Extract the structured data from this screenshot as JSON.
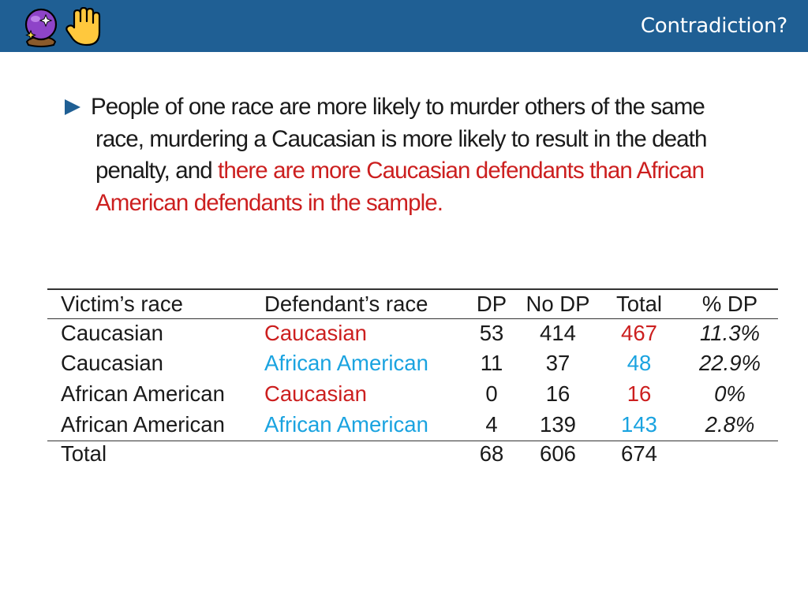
{
  "header": {
    "title": "Contradiction?",
    "icons": [
      "crystal-ball-icon",
      "raised-hand-icon"
    ]
  },
  "bullet": {
    "text_plain": "People of one race are more likely to murder others of the same race, murdering a Caucasian is more likely to result in the death penalty, and ",
    "text_highlight": "there are more Caucasian defendants than African American defendants in the sample."
  },
  "table": {
    "headers": [
      "Victim’s race",
      "Defendant’s race",
      "DP",
      "No DP",
      "Total",
      "% DP"
    ],
    "rows": [
      {
        "victim": "Caucasian",
        "defendant": "Caucasian",
        "dp": "53",
        "nodp": "414",
        "total": "467",
        "pct": "11.3%"
      },
      {
        "victim": "Caucasian",
        "defendant": "African American",
        "dp": "11",
        "nodp": "37",
        "total": "48",
        "pct": "22.9%"
      },
      {
        "victim": "African American",
        "defendant": "Caucasian",
        "dp": "0",
        "nodp": "16",
        "total": "16",
        "pct": "0%"
      },
      {
        "victim": "African American",
        "defendant": "African American",
        "dp": "4",
        "nodp": "139",
        "total": "143",
        "pct": "2.8%"
      }
    ],
    "total_row": {
      "label": "Total",
      "dp": "68",
      "nodp": "606",
      "total": "674"
    }
  },
  "colors": {
    "header_bg": "#1f5f94",
    "highlight_red": "#cc1f1f",
    "caucasian_red": "#cc1f1f",
    "african_american_blue": "#1aa3e0"
  }
}
